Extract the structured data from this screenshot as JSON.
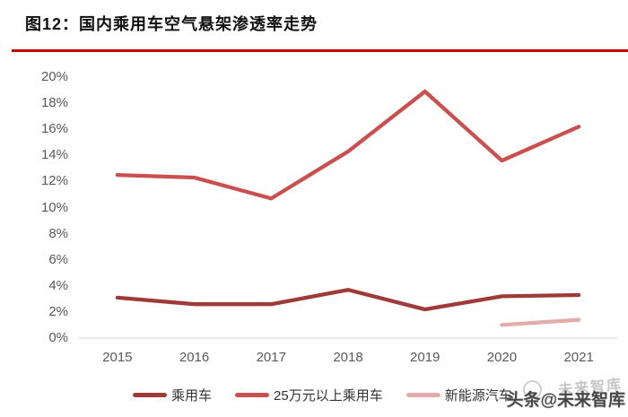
{
  "header": {
    "title": "图12：国内乘用车空气悬架渗透率走势",
    "rule_color": "#C00000"
  },
  "watermark": {
    "echo_text": "未来智库",
    "main_text": "头条@未来智库"
  },
  "chart_data": {
    "type": "line",
    "title": "国内乘用车空气悬架渗透率走势",
    "categories": [
      "2015",
      "2016",
      "2017",
      "2018",
      "2019",
      "2020",
      "2021"
    ],
    "series": [
      {
        "name": "乘用车",
        "color": "#9E3B38",
        "values": [
          3.1,
          2.6,
          2.6,
          3.7,
          2.2,
          3.2,
          3.3
        ]
      },
      {
        "name": "25万元以上乘用车",
        "color": "#C9504E",
        "values": [
          12.5,
          12.3,
          10.7,
          14.3,
          18.9,
          13.6,
          16.2
        ]
      },
      {
        "name": "新能源汽车",
        "color": "#E2ACAA",
        "values": [
          null,
          null,
          null,
          null,
          null,
          1.0,
          1.4
        ]
      }
    ],
    "xlabel": "",
    "ylabel": "",
    "ylim": [
      0,
      20
    ],
    "ytick_step": 2,
    "ytick_labels": [
      "0%",
      "2%",
      "4%",
      "6%",
      "8%",
      "10%",
      "12%",
      "14%",
      "16%",
      "18%",
      "20%"
    ],
    "unit": "percent",
    "grid": false,
    "legend_position": "bottom",
    "axis_line_color": "#DADADA",
    "tick_label_color": "#595959"
  }
}
